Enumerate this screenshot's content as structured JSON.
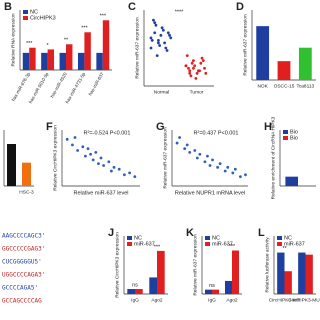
{
  "chart_data": [
    {
      "type": "bar",
      "panel": "B",
      "ylabel": "Relative RNA expression",
      "categories": [
        "has-miR-876-3p",
        "has-miR-5010-5p",
        "has-miR-4520",
        "has-miR-4731-5p",
        "has-miR-637"
      ],
      "series": [
        {
          "name": "NC",
          "color": "#1f3f9f",
          "values": [
            1,
            1,
            1,
            1,
            1
          ]
        },
        {
          "name": "CircHIPK3",
          "color": "#e02020",
          "values": [
            1.3,
            1.2,
            1.5,
            2.2,
            2.9
          ]
        }
      ],
      "sig": [
        "***",
        "*",
        "**",
        "***",
        "***"
      ],
      "ylim": [
        0,
        3.5
      ],
      "legend": "top-left"
    },
    {
      "type": "strip",
      "panel": "C",
      "ylabel": "Relative miR-637 expression",
      "categories": [
        "Normal",
        "Tumor"
      ],
      "series": [
        {
          "color": "#1f3f9f",
          "values": [
            1.9,
            2.1,
            1.7,
            2.3,
            1.5,
            2.0,
            1.8,
            2.4,
            1.6,
            2.2,
            1.4,
            1.9,
            2.6,
            1.2,
            2.0,
            1.7,
            2.1,
            1.5,
            2.5,
            1.8
          ]
        },
        {
          "color": "#e02020",
          "values": [
            0.8,
            0.6,
            1.0,
            0.5,
            0.9,
            0.7,
            1.2,
            0.4,
            0.8,
            0.6,
            1.1,
            0.5,
            0.7,
            0.9,
            0.3,
            0.6,
            1.0,
            0.8,
            0.5,
            0.7
          ]
        }
      ],
      "sig": "****",
      "ylim": [
        0,
        3
      ]
    },
    {
      "type": "bar",
      "panel": "D",
      "ylabel": "Relative miR-637 expression",
      "categories": [
        "NOK",
        "OSCC-15",
        "Tca8113"
      ],
      "values": [
        1,
        0.35,
        0.6
      ],
      "colors": [
        "#1f3f9f",
        "#e02020",
        "#30c030"
      ],
      "ylim": [
        0,
        1.3
      ]
    },
    {
      "type": "bar",
      "categories": [
        null,
        "HSC-3"
      ],
      "values": [
        0.9,
        0.5
      ],
      "colors": [
        "#111111",
        "#f07010"
      ],
      "ylim": [
        0,
        1.2
      ]
    },
    {
      "type": "scatter",
      "panel": "F",
      "ylabel": "Relative CircHIPK3 expression",
      "xlabel": "Relative miR-637 level",
      "annotation": "R²=-0.524 P<0.001",
      "color": "#2f5fbf",
      "x": [
        0.2,
        0.4,
        0.5,
        0.6,
        0.8,
        0.9,
        1.0,
        1.1,
        1.2,
        1.3,
        1.4,
        1.5,
        1.6,
        1.8,
        1.9,
        2.0,
        2.2,
        2.4,
        2.6,
        2.8
      ],
      "values": [
        2.5,
        2.2,
        2.6,
        1.9,
        2.1,
        1.6,
        2.0,
        1.7,
        1.4,
        1.8,
        1.2,
        1.5,
        1.1,
        1.3,
        0.8,
        1.0,
        0.9,
        0.6,
        0.7,
        0.5
      ],
      "xlim": [
        0,
        3
      ],
      "ylim": [
        0,
        3
      ]
    },
    {
      "type": "scatter",
      "panel": "G",
      "ylabel": "Relative miR-637 expression",
      "xlabel": "Relative NUPR1 mRNA level",
      "annotation": "R²=0.437 P<0.001",
      "color": "#2f5fbf",
      "x": [
        0.2,
        0.3,
        0.5,
        0.6,
        0.7,
        0.9,
        1.0,
        1.1,
        1.3,
        1.4,
        1.5,
        1.6,
        1.8,
        1.9,
        2.1,
        2.2,
        2.4,
        2.5,
        2.7,
        2.9
      ],
      "values": [
        2.3,
        2.6,
        2.0,
        2.2,
        1.8,
        1.9,
        1.5,
        1.7,
        1.3,
        1.6,
        1.1,
        1.4,
        1.0,
        1.2,
        0.8,
        1.0,
        0.7,
        0.9,
        0.5,
        0.6
      ],
      "xlim": [
        0,
        3
      ],
      "ylim": [
        0,
        3
      ]
    },
    {
      "type": "bar",
      "panel": "H",
      "ylabel": "Relative enrichment of CircRNA HIPK3",
      "categories": [
        null
      ],
      "series": [
        {
          "name": "Bio",
          "color": "#1f3f9f",
          "values": [
            1
          ]
        },
        {
          "name": "Bio",
          "color": "#e02020",
          "values": [
            null
          ]
        }
      ],
      "ylim": [
        0,
        6
      ],
      "legend": "top-left"
    },
    {
      "type": "bar",
      "panel": "J",
      "ylabel": "Relative CircHIPK3 expression",
      "categories": [
        "IgG",
        "Ago2"
      ],
      "series": [
        {
          "name": "NC",
          "color": "#1f3f9f",
          "values": [
            0.3,
            1
          ]
        },
        {
          "name": "miR-637",
          "color": "#e02020",
          "values": [
            0.3,
            2.6
          ]
        }
      ],
      "sig": [
        "ns",
        "***"
      ],
      "ylim": [
        0,
        3.5
      ],
      "legend": "top-left"
    },
    {
      "type": "bar",
      "panel": "K",
      "ylabel": "Relative miR-637 expression",
      "categories": [
        "IgG",
        "Ago2"
      ],
      "series": [
        {
          "name": "NC",
          "color": "#1f3f9f",
          "values": [
            0.3,
            0.9
          ]
        },
        {
          "name": "miR-637",
          "color": "#e02020",
          "values": [
            0.3,
            3
          ]
        }
      ],
      "sig": [
        "ns",
        "***"
      ],
      "ylim": [
        0,
        4
      ],
      "legend": "top-left"
    },
    {
      "type": "bar",
      "panel": "L",
      "ylabel": "Relative luciferase activity",
      "categories": [
        "CircHIPK3-WT",
        "CircHIPK3-MUT"
      ],
      "series": [
        {
          "name": "NC",
          "color": "#1f3f9f",
          "values": [
            1,
            1
          ]
        },
        {
          "name": "miR-637",
          "color": "#e02020",
          "values": [
            0.55,
            0.95
          ]
        }
      ],
      "sig": [
        "**",
        null
      ],
      "ylim": [
        0,
        1.4
      ],
      "legend": "top-left"
    }
  ],
  "fragments": {
    "texts": [
      "AAGCCCCAGC3'",
      "GGCCCCCGAG3'",
      "CUCGGGGGU5'",
      "UGGCCCCAGA3'",
      "GCCCCAGA5'",
      "GCCAGCCCCAG"
    ]
  }
}
